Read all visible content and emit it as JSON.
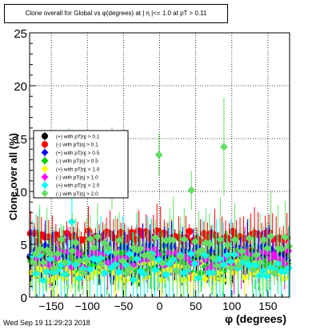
{
  "title": "Clone  overall for Global vs φ(degrees) at | η |<= 1.0 at pT > 0.11",
  "footer": "Wed Sep 19 11:29:23 2018",
  "chart_data": {
    "type": "scatter",
    "title": "Clone  overall for Global vs φ(degrees) at | η |<= 1.0 at pT > 0.11",
    "xlabel": "φ (degrees)",
    "ylabel": "Clone  over all (%)",
    "xlim": [
      -180,
      180
    ],
    "ylim": [
      0,
      25
    ],
    "xticks": [
      -150,
      -100,
      -50,
      0,
      50,
      100,
      150
    ],
    "yticks": [
      0,
      5,
      10,
      15,
      20,
      25
    ],
    "grid": true,
    "legend_position": "upper-left",
    "x_bins": 72,
    "series": [
      {
        "name": "(+) with pT|η| > 0.1",
        "color": "#000000",
        "marker": "circle",
        "base": 3.9,
        "spread": 0.4
      },
      {
        "name": "(-) with pT|η| > 0.1",
        "color": "#ff0000",
        "marker": "circle",
        "base": 5.8,
        "spread": 0.5
      },
      {
        "name": "(+) with pT|η| > 0.5",
        "color": "#0000ff",
        "marker": "diamond",
        "base": 4.1,
        "spread": 0.8
      },
      {
        "name": "(-) with pT|η| > 0.5",
        "color": "#00cc00",
        "marker": "diamond",
        "base": 3.3,
        "spread": 1.1
      },
      {
        "name": "(+) with pT|η| > 1.0",
        "color": "#ffff00",
        "marker": "diamond",
        "base": 2.5,
        "spread": 1.0
      },
      {
        "name": "(-) with pT|η| > 1.0",
        "color": "#ff00ff",
        "marker": "diamond",
        "base": 3.6,
        "spread": 1.0
      },
      {
        "name": "(+) with pT|η| > 2.0",
        "color": "#00ffff",
        "marker": "diamond",
        "base": 3.0,
        "spread": 1.4
      },
      {
        "name": "(-) with pT|η| > 2.0",
        "color": "#66dd66",
        "marker": "diamond",
        "base": 4.0,
        "spread": 1.8
      }
    ]
  }
}
